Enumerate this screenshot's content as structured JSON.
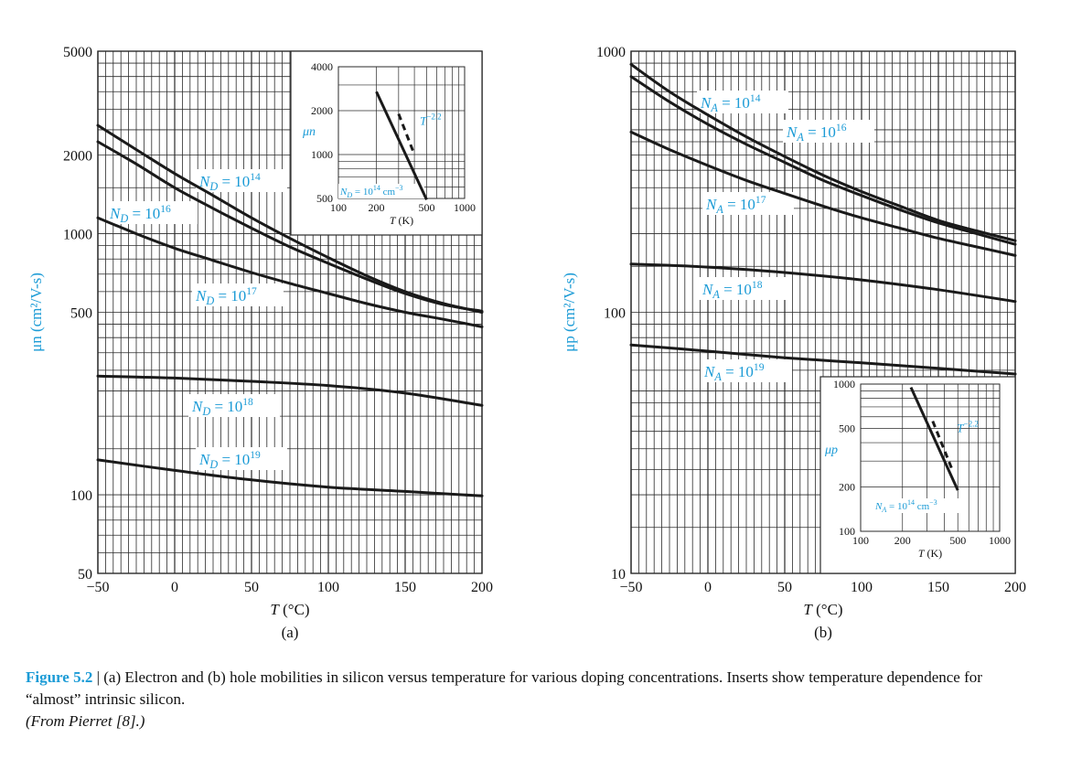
{
  "figure": {
    "label": "Figure 5.2",
    "separator": " | ",
    "text": "(a) Electron and (b) hole mobilities in silicon versus temperature for various doping concentrations. Inserts show temperature dependence for “almost” intrinsic silicon.",
    "source": "(From Pierret [8].)"
  },
  "colors": {
    "label": "#1b9bd6",
    "curve": "#1a1a1a",
    "grid": "#2a2a2a",
    "text": "#111111"
  },
  "chart_data": [
    {
      "type": "line",
      "panel": "(a)",
      "xlabel": "T (°C)",
      "ylabel": "μn (cm²/V-s)",
      "xlim": [
        -50,
        200
      ],
      "ylim": [
        50,
        5000
      ],
      "yscale": "log",
      "grid": true,
      "xticks": [
        -50,
        0,
        50,
        100,
        150,
        200
      ],
      "yticks": [
        50,
        100,
        500,
        1000,
        2000,
        5000
      ],
      "series": [
        {
          "name": "N_D = 10^14",
          "label_base": "N",
          "label_sub": "D",
          "label_eq": " = 10",
          "label_sup": "14",
          "x": [
            -50,
            -25,
            0,
            25,
            50,
            75,
            100,
            125,
            150,
            175,
            200
          ],
          "y": [
            2600,
            2100,
            1700,
            1400,
            1150,
            960,
            810,
            690,
            600,
            540,
            500
          ]
        },
        {
          "name": "N_D = 10^16",
          "label_base": "N",
          "label_sub": "D",
          "label_eq": " = 10",
          "label_sup": "16",
          "x": [
            -50,
            -25,
            0,
            25,
            50,
            75,
            100,
            125,
            150,
            175,
            200
          ],
          "y": [
            2250,
            1850,
            1500,
            1250,
            1050,
            890,
            770,
            670,
            590,
            535,
            505
          ]
        },
        {
          "name": "N_D = 10^17",
          "label_base": "N",
          "label_sub": "D",
          "label_eq": " = 10",
          "label_sup": "17",
          "x": [
            -50,
            -25,
            0,
            25,
            50,
            75,
            100,
            125,
            150,
            175,
            200
          ],
          "y": [
            1150,
            1000,
            880,
            790,
            710,
            645,
            590,
            540,
            500,
            470,
            440
          ]
        },
        {
          "name": "N_D = 10^18",
          "label_base": "N",
          "label_sub": "D",
          "label_eq": " = 10",
          "label_sup": "18",
          "x": [
            -50,
            0,
            50,
            100,
            150,
            200
          ],
          "y": [
            285,
            280,
            272,
            262,
            245,
            220
          ]
        },
        {
          "name": "N_D = 10^19",
          "label_base": "N",
          "label_sub": "D",
          "label_eq": " = 10",
          "label_sup": "19",
          "x": [
            -50,
            0,
            50,
            100,
            150,
            200
          ],
          "y": [
            136,
            124,
            114,
            107,
            103,
            99
          ]
        }
      ],
      "inset": {
        "ylabel": "μn",
        "xlabel": "T (K)",
        "xlim": [
          100,
          1000
        ],
        "ylim": [
          500,
          4000
        ],
        "xscale": "log",
        "yscale": "log",
        "xticks": [
          100,
          200,
          500,
          1000
        ],
        "yticks": [
          500,
          1000,
          2000,
          4000
        ],
        "line": {
          "x": [
            200,
            500
          ],
          "y": [
            2700,
            490
          ]
        },
        "dashed": {
          "label": "T",
          "label_sup": "−2.2",
          "x": [
            300,
            400
          ],
          "y": [
            1900,
            1000
          ]
        },
        "note": {
          "base": "N",
          "sub": "D",
          "eq": " = 10",
          "sup": "14",
          "unit": " cm",
          "unit_sup": "−3"
        }
      }
    },
    {
      "type": "line",
      "panel": "(b)",
      "xlabel": "T (°C)",
      "ylabel": "μp (cm²/V-s)",
      "xlim": [
        -50,
        200
      ],
      "ylim": [
        10,
        1000
      ],
      "yscale": "log",
      "grid": true,
      "xticks": [
        -50,
        0,
        50,
        100,
        150,
        200
      ],
      "yticks": [
        10,
        100,
        1000
      ],
      "series": [
        {
          "name": "N_A = 10^14",
          "label_base": "N",
          "label_sub": "A",
          "label_eq": " = 10",
          "label_sup": "14",
          "x": [
            -50,
            -25,
            0,
            25,
            50,
            75,
            100,
            125,
            150,
            175,
            200
          ],
          "y": [
            890,
            700,
            570,
            470,
            395,
            335,
            290,
            255,
            225,
            205,
            188
          ]
        },
        {
          "name": "N_A = 10^16",
          "label_base": "N",
          "label_sub": "A",
          "label_eq": " = 10",
          "label_sup": "16",
          "x": [
            -50,
            -25,
            0,
            25,
            50,
            75,
            100,
            125,
            150,
            175,
            200
          ],
          "y": [
            800,
            640,
            525,
            440,
            375,
            320,
            280,
            247,
            220,
            200,
            182
          ]
        },
        {
          "name": "N_A = 10^17",
          "label_base": "N",
          "label_sub": "A",
          "label_eq": " = 10",
          "label_sup": "17",
          "x": [
            -50,
            -25,
            0,
            25,
            50,
            75,
            100,
            125,
            150,
            175,
            200
          ],
          "y": [
            490,
            420,
            365,
            320,
            285,
            255,
            230,
            210,
            192,
            178,
            165
          ]
        },
        {
          "name": "N_A = 10^18",
          "label_base": "N",
          "label_sub": "A",
          "label_eq": " = 10",
          "label_sup": "18",
          "x": [
            -50,
            0,
            50,
            100,
            150,
            200
          ],
          "y": [
            153,
            149,
            142,
            133,
            122,
            110
          ]
        },
        {
          "name": "N_A = 10^19",
          "label_base": "N",
          "label_sub": "A",
          "label_eq": " = 10",
          "label_sup": "19",
          "x": [
            -50,
            0,
            50,
            100,
            150,
            200
          ],
          "y": [
            75,
            71,
            67,
            64,
            61,
            58
          ]
        }
      ],
      "inset": {
        "ylabel": "μp",
        "xlabel": "T (K)",
        "xlim": [
          100,
          1000
        ],
        "ylim": [
          100,
          1000
        ],
        "xscale": "log",
        "yscale": "log",
        "xticks": [
          100,
          200,
          500,
          1000
        ],
        "yticks": [
          100,
          200,
          500,
          1000
        ],
        "line": {
          "x": [
            230,
            500
          ],
          "y": [
            950,
            190
          ]
        },
        "dashed": {
          "label": "T",
          "label_sup": "−2.2",
          "x": [
            330,
            450
          ],
          "y": [
            560,
            270
          ]
        },
        "note": {
          "base": "N",
          "sub": "A",
          "eq": " = 10",
          "sup": "14",
          "unit": " cm",
          "unit_sup": "−3"
        }
      }
    }
  ]
}
